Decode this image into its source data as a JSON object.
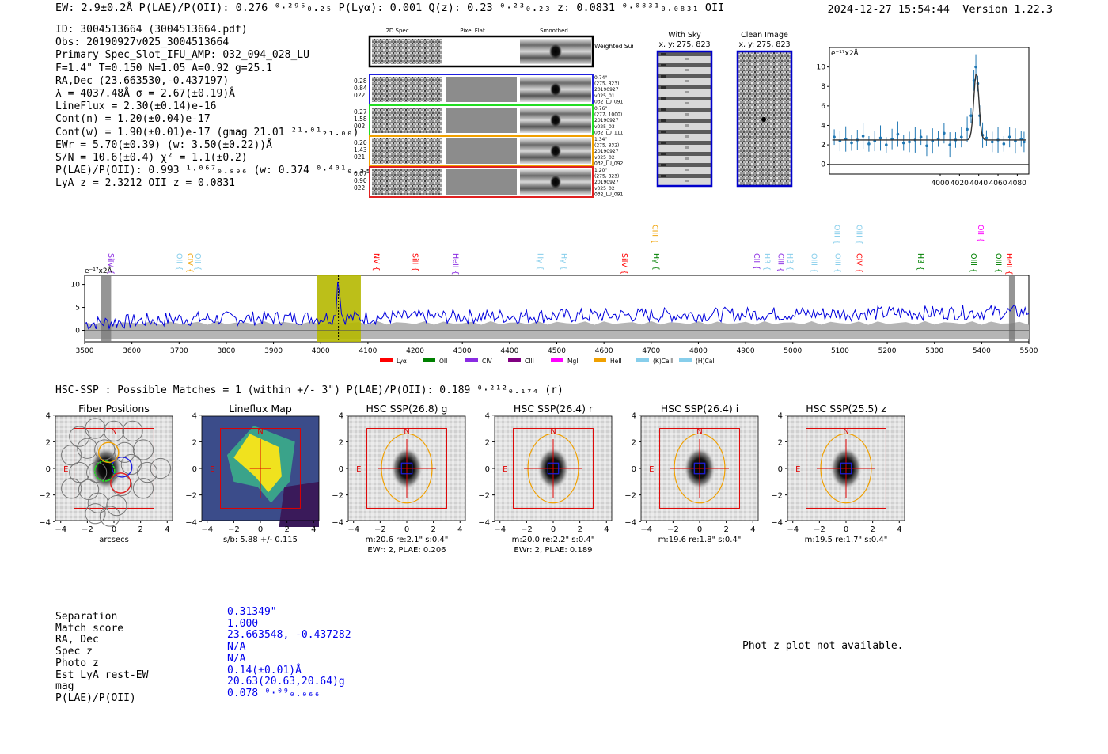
{
  "header": {
    "left": "EW: 2.9±0.2Å  P(LAE)/P(OII): 0.276 ⁰·²⁹⁵₀.₂₅  P(Lyα): 0.001  Q(z): 0.23 ⁰·²³₀.₂₃  z: 0.0831 ⁰·⁰⁸³¹₀.₀₈₃₁ OII",
    "timestamp": "2024-12-27 15:54:44",
    "version": "Version 1.22.3"
  },
  "details": [
    "ID: 3004513664 (3004513664.pdf)",
    "Obs: 20190927v025_3004513664",
    "Primary Spec_Slot_IFU_AMP: 032_094_028_LU",
    "F=1.4\"  T=0.150  N=1.05  A=0.92  g=25.1",
    "RA,Dec (23.663530,-0.437197)",
    "λ = 4037.48Å  σ = 2.67(±0.19)Å",
    "LineFlux = 2.30(±0.14)e-16",
    "Cont(n) = 1.20(±0.04)e-17",
    "Cont(w) = 1.90(±0.01)e-17 (gmag 21.01 ²¹·⁰¹₂₁.₀₀)",
    "EWr = 5.70(±0.39) (w: 3.50(±0.22))Å",
    "S/N = 10.6(±0.4)  χ² = 1.1(±0.2)",
    "P(LAE)/P(OII): 0.993 ¹·⁰⁶⁷₀.₈₉₆ (w: 0.374 ⁰·⁴⁰¹₀.₃₅₆)",
    "LyA z = 2.3212  OII z = 0.0831"
  ],
  "cutouts": {
    "headers": [
      "2D Spec",
      "Pixel Flat",
      "Smoothed"
    ],
    "weighted_label": "Weighted Sum",
    "rows": [
      {
        "left": [
          "0.28",
          "0.84",
          "022"
        ],
        "right": [
          "0.74\"",
          "(275, 823)",
          "20190927",
          "v025_01",
          "032_LU_091"
        ],
        "color": "#1f1fe0"
      },
      {
        "left": [
          "0.27",
          "1.58",
          "002"
        ],
        "right": [
          "0.76\"",
          "(277, 1000)",
          "20190927",
          "v025_03",
          "032_LU_111"
        ],
        "color": "#22dd22"
      },
      {
        "left": [
          "0.20",
          "1.43",
          "021"
        ],
        "right": [
          "1.34\"",
          "(275, 832)",
          "20190927",
          "v025_02",
          "032_LU_092"
        ],
        "color": "#f0a000"
      },
      {
        "left": [
          "0.07",
          "0.90",
          "022"
        ],
        "right": [
          "1.20\"",
          "(275, 823)",
          "20190927",
          "v025_02",
          "032_LU_091"
        ],
        "color": "#e02020"
      }
    ]
  },
  "sky": {
    "with_sky_title": "With Sky",
    "with_sky_coords": "x, y: 275, 823",
    "clean_title": "Clean Image",
    "clean_coords": "x, y: 275, 823"
  },
  "chart_data": [
    {
      "type": "scatter",
      "title": "",
      "ylabel": "e⁻¹⁷x2Å",
      "xlim": [
        3885,
        4092
      ],
      "ylim": [
        -1,
        12
      ],
      "xticks": [
        "4000",
        "4020",
        "4040",
        "4060",
        "4080"
      ],
      "yticks": [
        "0",
        "2",
        "4",
        "6",
        "8",
        "10"
      ],
      "x": [
        3890,
        3896,
        3902,
        3908,
        3914,
        3920,
        3926,
        3932,
        3938,
        3944,
        3950,
        3956,
        3962,
        3968,
        3974,
        3980,
        3986,
        3992,
        3998,
        4004,
        4010,
        4016,
        4022,
        4028,
        4032,
        4035,
        4037,
        4039,
        4041,
        4044,
        4048,
        4054,
        4060,
        4066,
        4072,
        4078,
        4084,
        4087
      ],
      "y": [
        2.8,
        2.4,
        2.6,
        2.2,
        2.5,
        2.9,
        2.1,
        2.4,
        2.7,
        2.0,
        2.6,
        3.1,
        2.2,
        2.3,
        2.5,
        2.8,
        1.9,
        2.4,
        2.6,
        3.2,
        2.0,
        2.5,
        2.8,
        3.6,
        5.0,
        8.6,
        10.0,
        8.3,
        5.0,
        3.0,
        2.7,
        2.3,
        2.5,
        2.1,
        2.8,
        2.4,
        2.6,
        2.3
      ],
      "fit_continuum": 2.5,
      "fit_peak": 9.3,
      "fit_center": 4037.48
    },
    {
      "type": "line",
      "ylabel": "e⁻¹⁷x2Å",
      "xlim": [
        3500,
        5500
      ],
      "ylim": [
        -2.5,
        12
      ],
      "xticks": [
        "3500",
        "3600",
        "3700",
        "3800",
        "3900",
        "4000",
        "4100",
        "4200",
        "4300",
        "4400",
        "4500",
        "4600",
        "4700",
        "4800",
        "4900",
        "5000",
        "5100",
        "5200",
        "5300",
        "5400",
        "5500"
      ],
      "yticks": [
        "0",
        "5",
        "10"
      ],
      "highlight_range": [
        3992,
        4085
      ],
      "line_center": 4037.48,
      "lines": [
        {
          "name": "SiIV",
          "wave": 3545,
          "color": "#8a2be2",
          "row": 1
        },
        {
          "name": "OII",
          "wave": 3690,
          "color": "#87ceeb",
          "row": 1
        },
        {
          "name": "CIV",
          "wave": 3713,
          "color": "#f0a000",
          "row": 1
        },
        {
          "name": "OII",
          "wave": 3730,
          "color": "#87ceeb",
          "row": 1
        },
        {
          "name": "NV",
          "wave": 4108,
          "color": "#ff0000",
          "row": 1
        },
        {
          "name": "SiII",
          "wave": 4190,
          "color": "#ff0000",
          "row": 1
        },
        {
          "name": "HeII",
          "wave": 4275,
          "color": "#8a2be2",
          "row": 1
        },
        {
          "name": "Hγ",
          "wave": 4455,
          "color": "#87ceeb",
          "row": 1
        },
        {
          "name": "Hγ",
          "wave": 4505,
          "color": "#87ceeb",
          "row": 1
        },
        {
          "name": "SiIV",
          "wave": 4633,
          "color": "#ff0000",
          "row": 1
        },
        {
          "name": "CIII",
          "wave": 4698,
          "color": "#f0a000",
          "row": 0
        },
        {
          "name": "Hγ",
          "wave": 4700,
          "color": "#008000",
          "row": 1
        },
        {
          "name": "CII",
          "wave": 4913,
          "color": "#8a2be2",
          "row": 1
        },
        {
          "name": "Hβ",
          "wave": 4935,
          "color": "#87ceeb",
          "row": 1
        },
        {
          "name": "CIII",
          "wave": 4964,
          "color": "#8a2be2",
          "row": 1
        },
        {
          "name": "Hβ",
          "wave": 4984,
          "color": "#87ceeb",
          "row": 1
        },
        {
          "name": "OIII",
          "wave": 5035,
          "color": "#87ceeb",
          "row": 1
        },
        {
          "name": "OIII",
          "wave": 5083,
          "color": "#87ceeb",
          "row": 0
        },
        {
          "name": "OIII",
          "wave": 5085,
          "color": "#87ceeb",
          "row": 1
        },
        {
          "name": "OIII",
          "wave": 5130,
          "color": "#87ceeb",
          "row": 0
        },
        {
          "name": "CIV",
          "wave": 5130,
          "color": "#ff0000",
          "row": 1
        },
        {
          "name": "Hβ",
          "wave": 5260,
          "color": "#008000",
          "row": 1
        },
        {
          "name": "OII",
          "wave": 5388,
          "color": "#ff00ff",
          "row": 0
        },
        {
          "name": "OIII",
          "wave": 5373,
          "color": "#008000",
          "row": 1
        },
        {
          "name": "OIII",
          "wave": 5425,
          "color": "#008000",
          "row": 1
        },
        {
          "name": "HeII",
          "wave": 5448,
          "color": "#ff0000",
          "row": 1
        }
      ],
      "legend": [
        {
          "name": "Lyα",
          "color": "#ff0000"
        },
        {
          "name": "OII",
          "color": "#008000"
        },
        {
          "name": "CIV",
          "color": "#8a2be2"
        },
        {
          "name": "CIII",
          "color": "#800080"
        },
        {
          "name": "MgII",
          "color": "#ff00ff"
        },
        {
          "name": "HeII",
          "color": "#f0a000"
        },
        {
          "name": "(K)CaII",
          "color": "#87ceeb"
        },
        {
          "name": "(H)CaII",
          "color": "#87ceeb"
        }
      ]
    }
  ],
  "hsc": {
    "title": "HSC-SSP : Possible Matches = 1 (within +/- 3\")  P(LAE)/P(OII): 0.189 ⁰·²¹²₀.₁₇₄ (r)",
    "ticks": [
      "−4",
      "−2",
      "0",
      "2",
      "4"
    ],
    "panels": [
      {
        "title": "Fiber Positions",
        "sub1": "arcsecs",
        "sub2": "",
        "kind": "fiber"
      },
      {
        "title": "Lineflux Map",
        "sub1": "s/b: 5.88 +/- 0.115",
        "sub2": "",
        "kind": "flux"
      },
      {
        "title": "HSC SSP(26.8) g",
        "sub1": "m:20.6  re:2.1\"  s:0.4\"",
        "sub2": "EWr: 2, PLAE: 0.206",
        "kind": "img"
      },
      {
        "title": "HSC SSP(26.4) r",
        "sub1": "m:20.0  re:2.2\"  s:0.4\"",
        "sub2": "EWr: 2, PLAE: 0.189",
        "kind": "img"
      },
      {
        "title": "HSC SSP(26.4) i",
        "sub1": "m:19.6  re:1.8\"  s:0.4\"",
        "sub2": "",
        "kind": "img"
      },
      {
        "title": "HSC SSP(25.5) z",
        "sub1": "m:19.5  re:1.7\"  s:0.4\"",
        "sub2": "",
        "kind": "img"
      }
    ],
    "compass_n": "N",
    "compass_e": "E"
  },
  "match": {
    "labels": [
      "Separation",
      "Match score",
      "RA, Dec",
      "Spec z",
      "Photo z",
      "Est LyA rest-EW",
      "mag",
      "P(LAE)/P(OII)"
    ],
    "values": [
      "0.31349\"",
      "1.000",
      "23.663548, -0.437282",
      "N/A",
      "N/A",
      "0.14(±0.01)Å",
      "20.63(20.63,20.64)g",
      "0.078 ⁰·⁰⁹₀.₀₆₆"
    ]
  },
  "phot_z_message": "Phot z plot not available."
}
